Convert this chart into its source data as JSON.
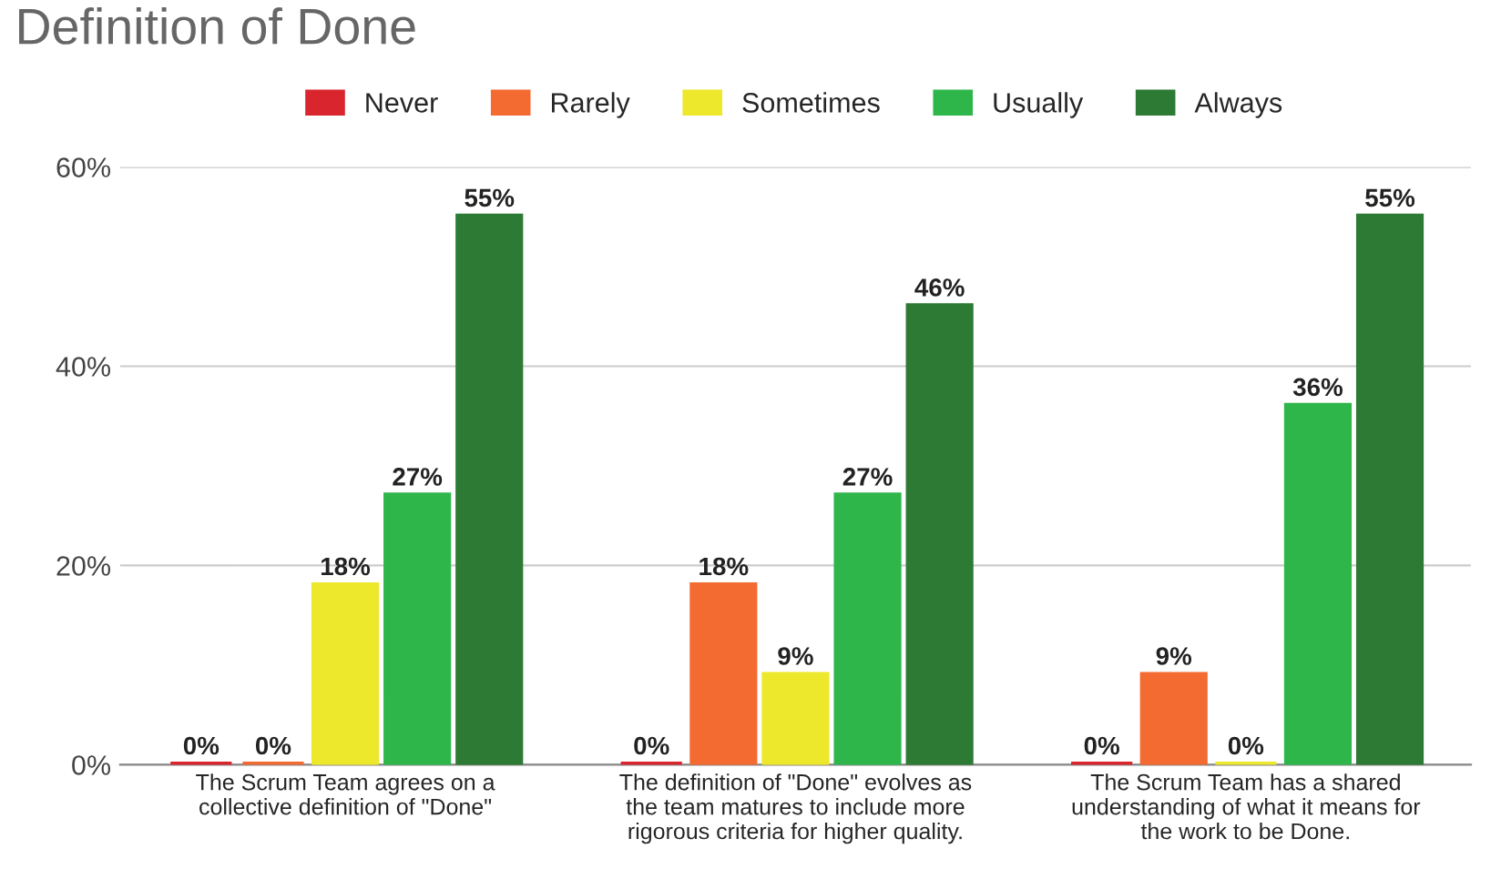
{
  "chart_data": {
    "type": "bar",
    "title": "Definition of Done",
    "categories": [
      "The Scrum Team agrees on a\ncollective definition of \"Done\"",
      "The definition of \"Done\" evolves as\nthe team matures to include more\nrigorous criteria for higher quality.",
      "The Scrum Team has a shared\nunderstanding of what it means for\nthe work to be Done."
    ],
    "series": [
      {
        "name": "Never",
        "color": "#d9262e",
        "values": [
          0,
          0,
          0
        ],
        "value_labels": [
          "0%",
          "0%",
          "0%"
        ]
      },
      {
        "name": "Rarely",
        "color": "#f36b31",
        "values": [
          0,
          18,
          9
        ],
        "value_labels": [
          "0%",
          "18%",
          "9%"
        ]
      },
      {
        "name": "Sometimes",
        "color": "#ede82c",
        "values": [
          18,
          9,
          0
        ],
        "value_labels": [
          "18%",
          "9%",
          "0%"
        ]
      },
      {
        "name": "Usually",
        "color": "#2fb64b",
        "values": [
          27,
          27,
          36
        ],
        "value_labels": [
          "27%",
          "27%",
          "36%"
        ]
      },
      {
        "name": "Always",
        "color": "#2d7a34",
        "values": [
          55,
          46,
          55
        ],
        "value_labels": [
          "55%",
          "46%",
          "55%"
        ]
      }
    ],
    "ylim": [
      0,
      60
    ],
    "yticks": [
      {
        "value": 0,
        "label": "0%"
      },
      {
        "value": 20,
        "label": "20%"
      },
      {
        "value": 40,
        "label": "40%"
      },
      {
        "value": 60,
        "label": "60%"
      }
    ],
    "grid": "y",
    "legend": "top"
  }
}
